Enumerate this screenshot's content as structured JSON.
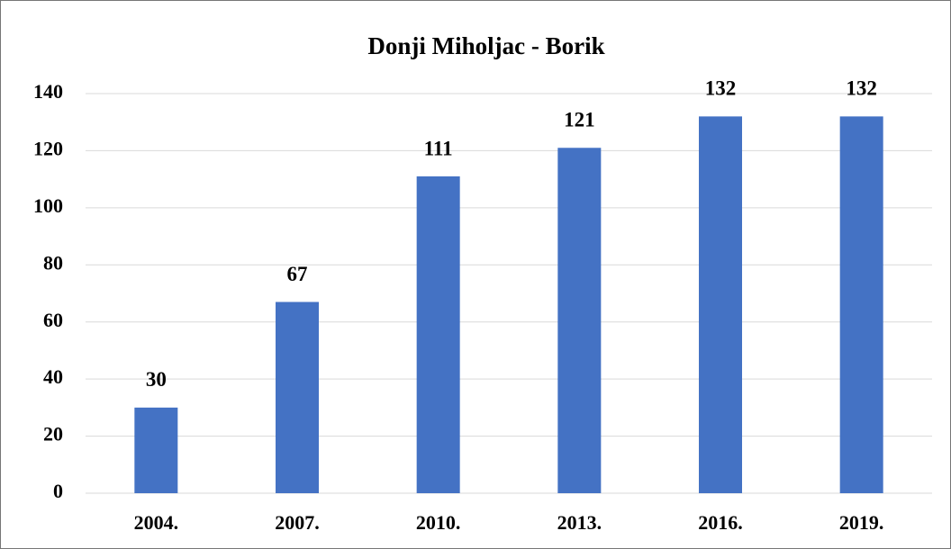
{
  "chart_data": {
    "type": "bar",
    "title": "Donji Miholjac - Borik",
    "categories": [
      "2004.",
      "2007.",
      "2010.",
      "2013.",
      "2016.",
      "2019."
    ],
    "values": [
      30,
      67,
      111,
      121,
      132,
      132
    ],
    "color": "#4472c4",
    "ylim": [
      0,
      140
    ],
    "yticks": [
      0,
      20,
      40,
      60,
      80,
      100,
      120,
      140
    ],
    "grid": true
  }
}
